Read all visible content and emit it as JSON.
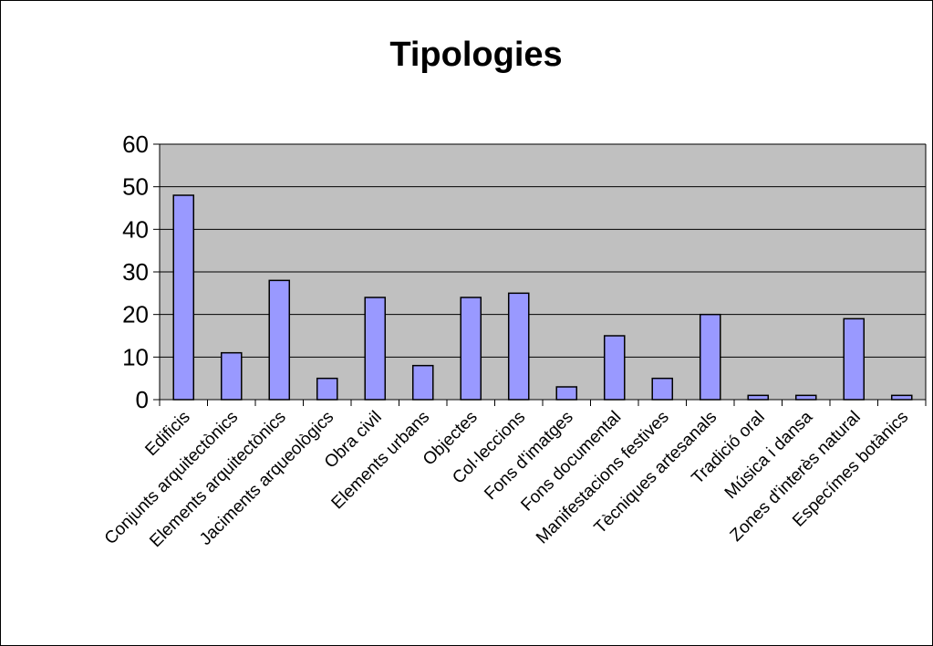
{
  "chart_data": {
    "type": "bar",
    "title": "Tipologies",
    "xlabel": "",
    "ylabel": "",
    "ylim": [
      0,
      60
    ],
    "yticks": [
      0,
      10,
      20,
      30,
      40,
      50,
      60
    ],
    "grid": true,
    "legend": "none",
    "categories": [
      "Edificis",
      "Conjunts arquitectònics",
      "Elements arquitectònics",
      "Jaciments arqueològics",
      "Obra civil",
      "Elements urbans",
      "Objectes",
      "Col·leccions",
      "Fons d'imatges",
      "Fons documental",
      "Manifestacions festives",
      "Tècniques artesanals",
      "Tradició oral",
      "Música i dansa",
      "Zones d'interès natural",
      "Especímes botànics"
    ],
    "values": [
      48,
      11,
      28,
      5,
      24,
      8,
      24,
      25,
      3,
      15,
      5,
      20,
      1,
      1,
      19,
      1
    ],
    "colors": {
      "bar_fill": "#9999ff",
      "bar_stroke": "#000000",
      "plot_bg": "#c0c0c0",
      "grid": "#000000"
    }
  }
}
